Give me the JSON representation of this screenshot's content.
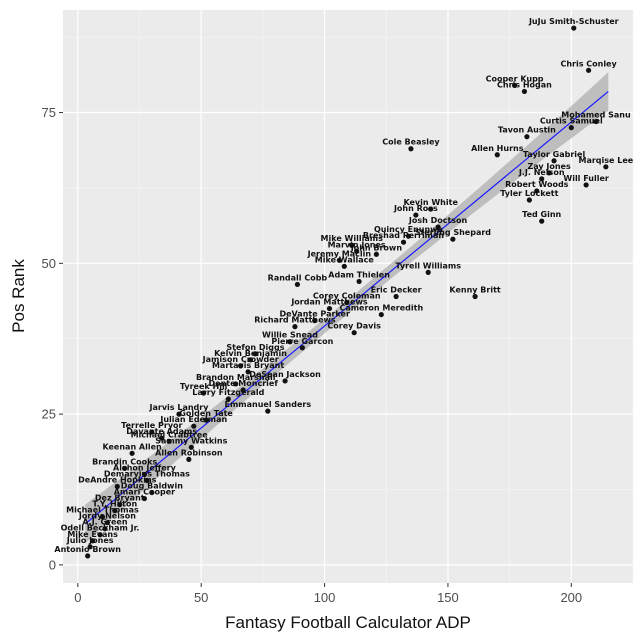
{
  "chart_data": {
    "type": "scatter",
    "title": "",
    "xlabel": "Fantasy Football Calculator ADP",
    "ylabel": "Pos Rank",
    "xlim": [
      -6,
      225
    ],
    "ylim": [
      -3,
      92
    ],
    "x_ticks": [
      0,
      50,
      100,
      150,
      200
    ],
    "y_ticks": [
      0,
      25,
      50,
      75
    ],
    "grid": true,
    "trend": {
      "method": "linear fit with confidence band",
      "x": [
        3,
        215
      ],
      "y": [
        6.8,
        78.5
      ],
      "band_halfwidth": [
        1.2,
        3.2
      ]
    },
    "points": [
      {
        "name": "JuJu Smith-Schuster",
        "x": 201,
        "y": 89
      },
      {
        "name": "Chris Conley",
        "x": 207,
        "y": 82
      },
      {
        "name": "Cooper Kupp",
        "x": 177,
        "y": 79.5
      },
      {
        "name": "Chris Hogan",
        "x": 181,
        "y": 78.5
      },
      {
        "name": "Mohamed Sanu",
        "x": 210,
        "y": 73.5
      },
      {
        "name": "Curtis Samuel",
        "x": 200,
        "y": 72.5
      },
      {
        "name": "Tavon Austin",
        "x": 182,
        "y": 71
      },
      {
        "name": "Cole Beasley",
        "x": 135,
        "y": 69
      },
      {
        "name": "Allen Hurns",
        "x": 170,
        "y": 68
      },
      {
        "name": "Taylor Gabriel",
        "x": 193,
        "y": 67
      },
      {
        "name": "Marqise Lee",
        "x": 214,
        "y": 66
      },
      {
        "name": "Zay Jones",
        "x": 191,
        "y": 65
      },
      {
        "name": "J.J. Nelson",
        "x": 188,
        "y": 64
      },
      {
        "name": "Will Fuller",
        "x": 206,
        "y": 63
      },
      {
        "name": "Robert Woods",
        "x": 186,
        "y": 62
      },
      {
        "name": "Tyler Lockett",
        "x": 183,
        "y": 60.5
      },
      {
        "name": "Kevin White",
        "x": 143,
        "y": 59
      },
      {
        "name": "John Ross",
        "x": 137,
        "y": 58
      },
      {
        "name": "Ted Ginn",
        "x": 188,
        "y": 57
      },
      {
        "name": "Josh Doctson",
        "x": 146,
        "y": 56
      },
      {
        "name": "Quincy Enunwa",
        "x": 134,
        "y": 54.5
      },
      {
        "name": "Sterling Shepard",
        "x": 152,
        "y": 54
      },
      {
        "name": "Breshad Perriman",
        "x": 132,
        "y": 53.5
      },
      {
        "name": "Mike Williams",
        "x": 111,
        "y": 53
      },
      {
        "name": "Marvin Jones",
        "x": 113,
        "y": 52
      },
      {
        "name": "John Brown",
        "x": 121,
        "y": 51.5
      },
      {
        "name": "Jeremy Maclin",
        "x": 106,
        "y": 50.5
      },
      {
        "name": "Mike Wallace",
        "x": 108,
        "y": 49.5
      },
      {
        "name": "Tyrell Williams",
        "x": 142,
        "y": 48.5
      },
      {
        "name": "Adam Thielen",
        "x": 114,
        "y": 47
      },
      {
        "name": "Randall Cobb",
        "x": 89,
        "y": 46.5
      },
      {
        "name": "Kenny Britt",
        "x": 161,
        "y": 44.5
      },
      {
        "name": "Eric Decker",
        "x": 129,
        "y": 44.5
      },
      {
        "name": "Corey Coleman",
        "x": 109,
        "y": 43.5
      },
      {
        "name": "Jordan Matthews",
        "x": 102,
        "y": 42.5
      },
      {
        "name": "Cameron Meredith",
        "x": 123,
        "y": 41.5
      },
      {
        "name": "DeVante Parker",
        "x": 96,
        "y": 40.5
      },
      {
        "name": "Richard Matthews",
        "x": 88,
        "y": 39.5
      },
      {
        "name": "Corey Davis",
        "x": 112,
        "y": 38.5
      },
      {
        "name": "Willie Snead",
        "x": 86,
        "y": 37
      },
      {
        "name": "Pierre Garcon",
        "x": 91,
        "y": 36
      },
      {
        "name": "Stefon Diggs",
        "x": 72,
        "y": 35
      },
      {
        "name": "Kelvin Benjamin",
        "x": 70,
        "y": 34
      },
      {
        "name": "Jamison Crowder",
        "x": 66,
        "y": 33
      },
      {
        "name": "Martavis Bryant",
        "x": 69,
        "y": 32
      },
      {
        "name": "DeSean Jackson",
        "x": 84,
        "y": 30.5
      },
      {
        "name": "Brandon Marshall",
        "x": 64,
        "y": 30
      },
      {
        "name": "Donte Moncrief",
        "x": 67,
        "y": 29
      },
      {
        "name": "Tyreek Hill",
        "x": 51,
        "y": 28.5
      },
      {
        "name": "Larry Fitzgerald",
        "x": 61,
        "y": 27.5
      },
      {
        "name": "Emmanuel Sanders",
        "x": 77,
        "y": 25.5
      },
      {
        "name": "Jarvis Landry",
        "x": 41,
        "y": 25
      },
      {
        "name": "Golden Tate",
        "x": 52,
        "y": 24
      },
      {
        "name": "Julian Edelman",
        "x": 47,
        "y": 23
      },
      {
        "name": "Terrelle Pryor",
        "x": 30,
        "y": 22
      },
      {
        "name": "Michael Crabtree",
        "x": 37,
        "y": 20.5
      },
      {
        "name": "Davante Adams",
        "x": 34,
        "y": 21
      },
      {
        "name": "Sammy Watkins",
        "x": 46,
        "y": 19.5
      },
      {
        "name": "Keenan Allen",
        "x": 22,
        "y": 18.5
      },
      {
        "name": "Allen Robinson",
        "x": 45,
        "y": 17.5
      },
      {
        "name": "Brandin Cooks",
        "x": 19,
        "y": 16
      },
      {
        "name": "Alshon Jeffery",
        "x": 27,
        "y": 15
      },
      {
        "name": "Demaryius Thomas",
        "x": 28,
        "y": 14
      },
      {
        "name": "DeAndre Hopkins",
        "x": 16,
        "y": 13
      },
      {
        "name": "Doug Baldwin",
        "x": 30,
        "y": 12
      },
      {
        "name": "Amari Cooper",
        "x": 27,
        "y": 11
      },
      {
        "name": "Dez Bryant",
        "x": 17,
        "y": 10
      },
      {
        "name": "T.Y. Hilton",
        "x": 15,
        "y": 9
      },
      {
        "name": "Michael Thomas",
        "x": 10,
        "y": 8
      },
      {
        "name": "Jordy Nelson",
        "x": 12,
        "y": 7
      },
      {
        "name": "A.J. Green",
        "x": 11,
        "y": 6
      },
      {
        "name": "Odell Beckham Jr.",
        "x": 9,
        "y": 5
      },
      {
        "name": "Mike Evans",
        "x": 6,
        "y": 4
      },
      {
        "name": "Julio Jones",
        "x": 5,
        "y": 3
      },
      {
        "name": "Antonio Brown",
        "x": 4,
        "y": 1.5
      }
    ]
  }
}
